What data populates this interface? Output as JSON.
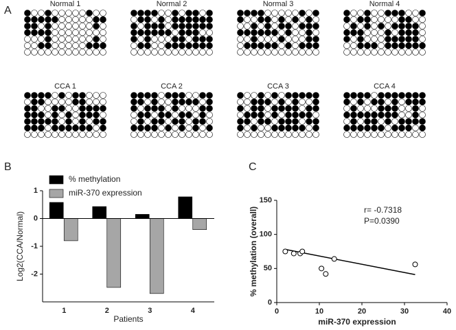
{
  "panel_labels": [
    "A",
    "B",
    "C"
  ],
  "chart_data": [
    {
      "type": "dot-grid",
      "panels": [
        "Normal 1",
        "Normal 2",
        "Normal 3",
        "Normal 4",
        "CCA 1",
        "CCA 2",
        "CCA 3",
        "CCA 4"
      ]
    },
    {
      "type": "bar",
      "ylabel": "Log2(CCA/Normal)",
      "xlabel": "Patients",
      "categories": [
        "1",
        "2",
        "3",
        "4"
      ],
      "series": [
        {
          "name": "% methylation",
          "color": "#000000",
          "values": [
            0.58,
            0.43,
            0.15,
            0.78
          ]
        },
        {
          "name": "miR-370 expression",
          "color": "#a6a6a6",
          "values": [
            -0.8,
            -2.48,
            -2.7,
            -0.4
          ]
        }
      ],
      "ylim": [
        -3,
        1
      ],
      "yticks": [
        -2,
        -1,
        0,
        1
      ]
    },
    {
      "type": "scatter",
      "xlabel": "miR-370 expression",
      "ylabel": "% methylation (overall)",
      "x": [
        2,
        4,
        5.5,
        6,
        10.5,
        11.5,
        13.5,
        32.5
      ],
      "values": [
        75,
        72,
        72,
        75,
        50,
        42,
        64,
        56
      ],
      "fit_line": {
        "x": [
          2,
          32.5
        ],
        "y": [
          78,
          41
        ]
      },
      "annotations": [
        "r= -0.7318",
        "P=0.0390"
      ],
      "xlim": [
        0,
        40
      ],
      "xticks": [
        0,
        10,
        20,
        30,
        40
      ],
      "ylim": [
        0,
        150
      ],
      "yticks": [
        0,
        50,
        100,
        150
      ]
    }
  ]
}
